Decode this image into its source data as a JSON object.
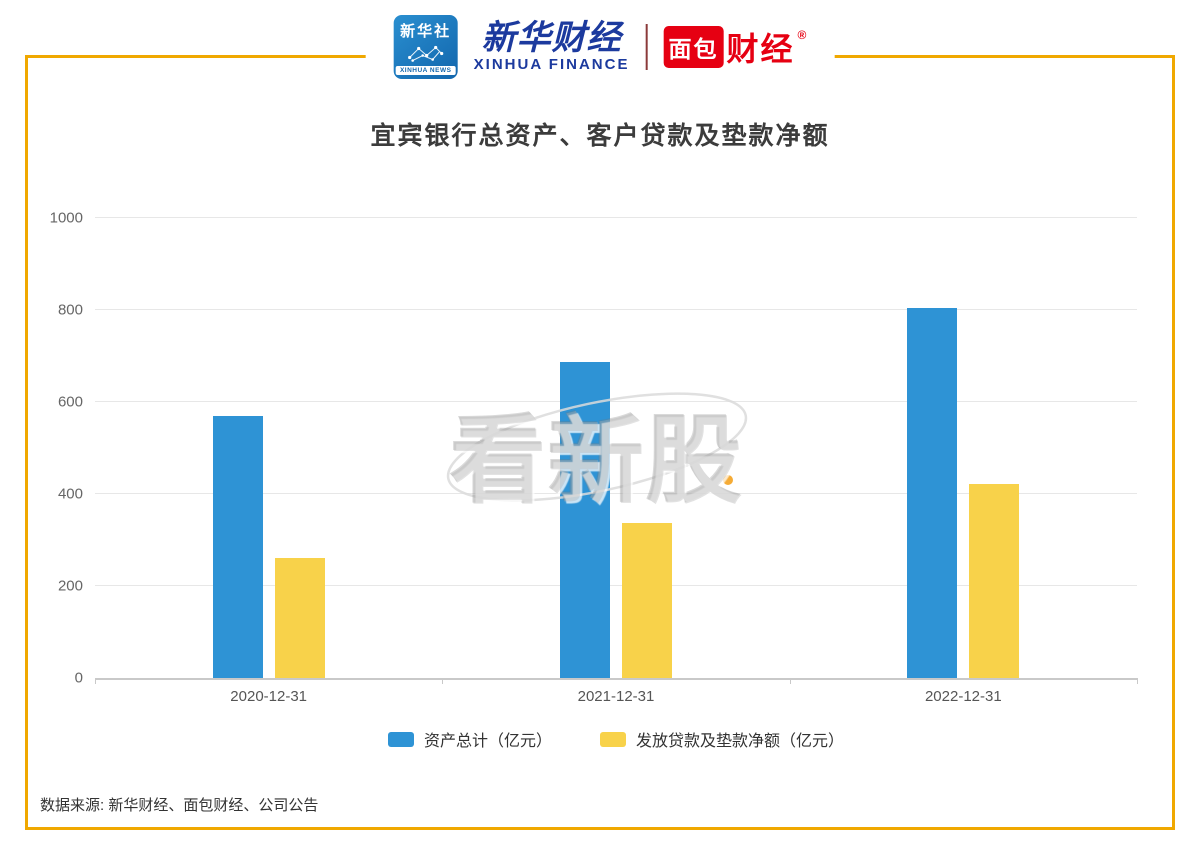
{
  "header": {
    "xinhua_news": {
      "cn": "新华社",
      "en": "XINHUA NEWS"
    },
    "xinhua_finance": {
      "cn": "新华财经",
      "en": "XINHUA FINANCE"
    },
    "mianbao": {
      "box": "面包",
      "rest": "财经",
      "reg": "®"
    }
  },
  "chart_data": {
    "type": "bar",
    "title": "宜宾银行总资产、客户贷款及垫款净额",
    "categories": [
      "2020-12-31",
      "2021-12-31",
      "2022-12-31"
    ],
    "series": [
      {
        "name": "资产总计（亿元）",
        "color": "#2e93d5",
        "values": [
          570,
          686,
          804
        ]
      },
      {
        "name": "发放贷款及垫款净额（亿元）",
        "color": "#f8d24a",
        "values": [
          261,
          338,
          421
        ]
      }
    ],
    "ylim": [
      0,
      1000
    ],
    "yticks": [
      0,
      200,
      400,
      600,
      800,
      1000
    ],
    "xlabel": "",
    "ylabel": "",
    "grid": true,
    "legend_position": "bottom"
  },
  "watermark": {
    "text": "看新股"
  },
  "footer": {
    "text": "数据来源: 新华财经、面包财经、公司公告"
  },
  "colors": {
    "frame_border": "#f0a800",
    "brand_red": "#e60012",
    "brand_blue": "#1c3a9e"
  }
}
